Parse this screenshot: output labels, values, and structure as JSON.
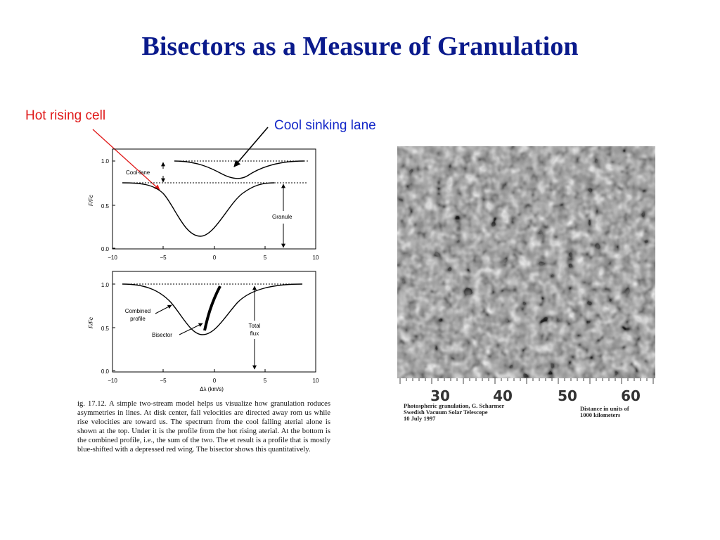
{
  "title": "Bisectors as a Measure of  Granulation",
  "callouts": {
    "hot": "Hot rising cell",
    "cool": "Cool sinking lane"
  },
  "colors": {
    "title": "#0a1a8c",
    "hot": "#e01818",
    "cool": "#1428c8"
  },
  "figure": {
    "y_axis_label": "F/Fc",
    "x_axis_label": "Δλ (km/s)",
    "x_ticks": [
      "−10",
      "−5",
      "0",
      "5",
      "10"
    ],
    "top_panel": {
      "y_ticks": [
        "1.0",
        "0.5",
        "0.0"
      ],
      "labels": {
        "cool_lane": "Cool-lane",
        "granule": "Granule"
      }
    },
    "bottom_panel": {
      "y_ticks": [
        "1.0",
        "0.5",
        "0.0"
      ],
      "labels": {
        "combined": "Combined",
        "profile": "profile",
        "bisector": "Bisector",
        "total": "Total",
        "flux": "flux"
      }
    },
    "caption": "ig. 17.12.   A simple two-stream model helps us visualize how granulation roduces asymmetries in lines. At disk center, fall velocities are directed away rom us while rise velocities are toward us. The spectrum from the cool falling aterial alone is shown at the top. Under it is the profile from the hot rising aterial. At the bottom is the combined profile, i.e., the sum of the two. The et result is a profile that is mostly blue-shifted with a depressed red wing. The bisector shows this quantitatively."
  },
  "granulation": {
    "scale_numbers": [
      "30",
      "40",
      "50",
      "60"
    ],
    "credit_left": [
      "Photospheric granulation, G. Scharmer",
      "Swedish Vacuum Solar Telescope",
      "10 July 1997"
    ],
    "credit_right": [
      "Distance in units of",
      "1000 kilometers"
    ]
  }
}
